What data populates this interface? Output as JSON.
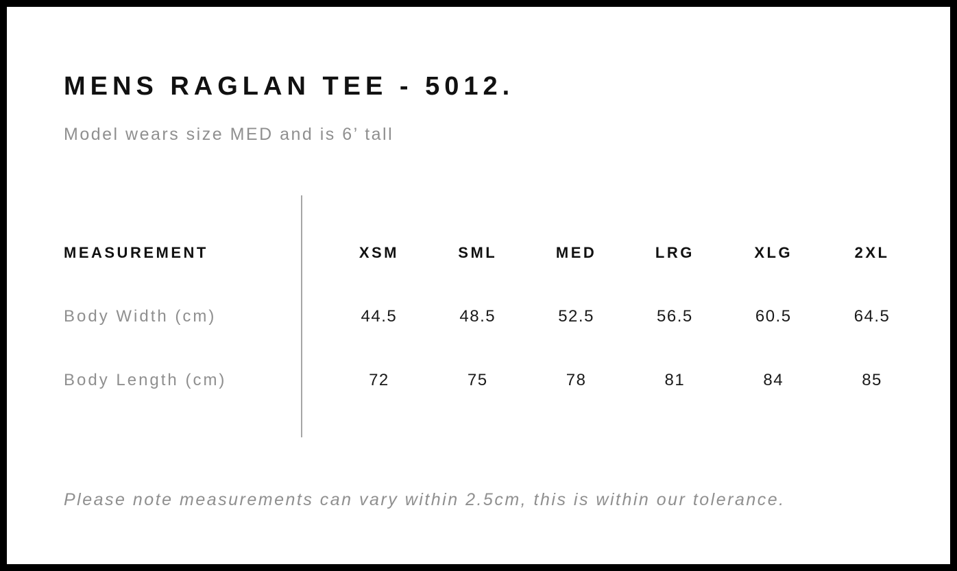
{
  "page": {
    "title": "MENS RAGLAN TEE - 5012.",
    "subtitle": "Model wears size MED and is 6’ tall",
    "footnote": "Please note measurements can vary within 2.5cm, this is within our tolerance."
  },
  "size_chart": {
    "measurement_header": "MEASUREMENT",
    "size_headers": [
      "XSM",
      "SML",
      "MED",
      "LRG",
      "XLG",
      "2XL"
    ],
    "rows": [
      {
        "label": "Body Width (cm)",
        "values": [
          "44.5",
          "48.5",
          "52.5",
          "56.5",
          "60.5",
          "64.5"
        ]
      },
      {
        "label": "Body Length (cm)",
        "values": [
          "72",
          "75",
          "78",
          "81",
          "84",
          "85"
        ]
      }
    ]
  },
  "colors": {
    "background": "#ffffff",
    "frame_border": "#000000",
    "text_primary": "#111111",
    "text_secondary": "#8f8f8f",
    "divider": "#a6a6a6"
  }
}
